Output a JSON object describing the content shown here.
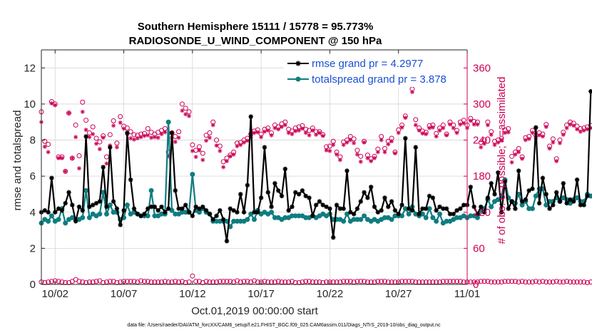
{
  "chart_data": {
    "type": "line",
    "title_line1": "Southern Hemisphere 15111 / 15778 = 95.773%",
    "title_line2": "RADIOSONDE_U_WIND_COMPONENT @ 150 hPa",
    "xlabel": "Oct.01,2019 00:00:00 start",
    "ylabel": "rmse and totalspread",
    "ylabel_right": "# of obs: o=possible; ×=assimilated",
    "footnote": "data file: /Users/raeder/DAI/ATM_forcXX/CAM6_setup/f.e21.FHIST_BGC.f09_025.CAM6assim.011/Diags_NTrS_2019-10/obs_diag_output.nc",
    "xlim": [
      0.5,
      31.5
    ],
    "ylim": [
      0,
      13
    ],
    "ylim_right": [
      0,
      390
    ],
    "x_ticks": [
      1.5,
      6.5,
      11.5,
      16.5,
      21.5,
      26.5,
      31.5
    ],
    "x_tick_labels": [
      "10/02",
      "10/07",
      "10/12",
      "10/17",
      "10/22",
      "10/27",
      "11/01"
    ],
    "y_ticks": [
      0,
      2,
      4,
      6,
      8,
      10,
      12
    ],
    "y_tick_labels": [
      "0",
      "2",
      "4",
      "6",
      "8",
      "10",
      "12"
    ],
    "y_right_ticks": [
      0,
      60,
      120,
      180,
      240,
      300,
      360
    ],
    "y_right_tick_labels": [
      "0",
      "60",
      "120",
      "180",
      "240",
      "300",
      "360"
    ],
    "x_start": 0.5,
    "x_step": 0.25,
    "legend_location": "top-right",
    "series": [
      {
        "name": "rmse grand pr = 4.2977",
        "color": "#000000",
        "marker": "asterisk",
        "values": [
          4.0,
          4.1,
          4.0,
          5.9,
          4.0,
          4.2,
          4.1,
          4.5,
          5.1,
          4.4,
          3.5,
          4.3,
          4.1,
          8.2,
          4.3,
          4.4,
          4.5,
          4.6,
          6.5,
          4.3,
          7.6,
          4.6,
          4.2,
          3.3,
          4.1,
          8.4,
          5.8,
          4.2,
          3.9,
          3.8,
          3.9,
          4.2,
          4.3,
          4.3,
          4.1,
          4.3,
          4.0,
          4.2,
          8.4,
          5.2,
          4.2,
          4.2,
          4.4,
          4.0,
          3.8,
          4.3,
          4.2,
          4.3,
          4.1,
          3.9,
          3.6,
          3.8,
          4.1,
          3.6,
          2.4,
          4.2,
          4.1,
          4.0,
          5.0,
          4.0,
          5.5,
          9.3,
          4.0,
          4.0,
          4.8,
          7.6,
          5.1,
          4.3,
          5.6,
          5.2,
          4.9,
          6.4,
          4.1,
          4.3,
          5.1,
          5.0,
          5.2,
          4.9,
          4.8,
          3.8,
          4.4,
          4.6,
          4.4,
          4.3,
          4.2,
          2.6,
          4.4,
          4.2,
          4.2,
          6.3,
          4.0,
          3.9,
          4.2,
          4.6,
          5.1,
          4.8,
          5.4,
          4.3,
          4.0,
          4.1,
          4.8,
          4.3,
          4.6,
          4.1,
          3.9,
          4.4,
          8.1,
          4.2,
          4.1,
          7.6,
          3.9,
          4.2,
          4.2,
          4.9,
          4.8,
          4.1,
          4.3,
          4.2,
          4.2,
          3.9,
          3.9,
          4.1,
          4.2,
          4.4,
          4.4,
          5.4,
          4.3,
          3.9,
          4.3,
          4.0,
          4.8,
          5.6,
          5.0,
          6.2,
          4.0,
          5.7,
          4.2,
          4.6,
          4.2,
          6.3,
          4.6,
          4.7,
          5.2,
          5.3,
          8.7,
          4.5,
          5.9,
          5.0,
          4.2,
          4.4,
          5.1,
          4.6,
          5.6,
          4.5,
          4.7,
          4.6,
          5.8,
          4.4,
          4.4,
          4.9,
          10.7
        ]
      },
      {
        "name": "totalspread grand pr = 3.878",
        "color": "#0f7d80",
        "marker": "circle",
        "values": [
          3.4,
          3.6,
          3.5,
          3.8,
          3.5,
          3.6,
          4.2,
          3.4,
          3.6,
          3.7,
          3.6,
          3.6,
          3.7,
          5.2,
          3.7,
          3.9,
          3.8,
          3.9,
          5.1,
          3.9,
          4.4,
          4.0,
          4.0,
          3.6,
          3.7,
          4.4,
          3.9,
          4.0,
          3.9,
          3.8,
          3.8,
          3.8,
          5.2,
          3.8,
          3.8,
          3.9,
          3.9,
          9.0,
          4.1,
          3.9,
          3.9,
          4.0,
          4.0,
          4.0,
          6.1,
          4.1,
          4.0,
          4.2,
          4.0,
          3.9,
          3.5,
          3.5,
          3.5,
          3.5,
          3.5,
          3.2,
          3.5,
          3.5,
          3.5,
          3.5,
          3.6,
          3.9,
          3.6,
          4.1,
          3.9,
          4.0,
          3.9,
          4.0,
          3.7,
          3.7,
          3.6,
          3.7,
          3.7,
          3.8,
          3.8,
          3.8,
          3.8,
          3.7,
          3.7,
          3.8,
          3.7,
          3.8,
          3.9,
          3.8,
          3.9,
          3.6,
          3.6,
          3.6,
          3.5,
          3.9,
          3.5,
          3.6,
          3.6,
          3.6,
          3.8,
          3.6,
          3.5,
          3.6,
          3.5,
          3.6,
          3.7,
          3.7,
          3.6,
          3.8,
          3.8,
          3.8,
          4.2,
          3.9,
          4.3,
          3.9,
          3.8,
          3.9,
          3.7,
          4.2,
          3.7,
          3.5,
          3.9,
          3.4,
          3.5,
          3.5,
          3.6,
          3.7,
          3.7,
          3.8,
          3.7,
          3.8,
          3.8,
          3.7,
          4.1,
          4.2,
          4.7,
          4.3,
          4.6,
          4.7,
          4.9,
          5.8,
          4.8,
          4.6,
          4.5,
          5.0,
          4.4,
          4.6,
          4.2,
          4.2,
          4.9,
          5.3,
          5.3,
          4.4,
          4.6,
          4.6,
          4.8,
          4.6,
          4.8,
          4.7,
          4.5,
          4.7,
          4.8,
          4.6,
          4.6,
          5.0,
          4.9
        ]
      },
      {
        "name": "# of obs possible",
        "color": "#cc0055",
        "marker": "open-circle",
        "axis": "right",
        "values": [
          287,
          238,
          233,
          304,
          300,
          212,
          212,
          188,
          285,
          210,
          265,
          214,
          303,
          273,
          252,
          262,
          243,
          237,
          247,
          212,
          249,
          272,
          235,
          279,
          263,
          260,
          254,
          249,
          248,
          250,
          251,
          259,
          253,
          250,
          253,
          256,
          259,
          220,
          252,
          246,
          254,
          300,
          293,
          287,
          232,
          223,
          229,
          218,
          248,
          252,
          270,
          240,
          230,
          204,
          210,
          215,
          220,
          235,
          236,
          240,
          243,
          250,
          255,
          257,
          250,
          258,
          260,
          252,
          265,
          262,
          267,
          270,
          258,
          255,
          260,
          262,
          264,
          258,
          256,
          260,
          254,
          254,
          249,
          229,
          230,
          238,
          220,
          212,
          237,
          240,
          246,
          242,
          223,
          213,
          238,
          215,
          209,
          213,
          225,
          246,
          226,
          238,
          243,
          220,
          257,
          265,
          280,
          344,
          325,
          274,
          260,
          255,
          253,
          264,
          265,
          251,
          260,
          265,
          250,
          270,
          265,
          256,
          270,
          273,
          265,
          276,
          271,
          270,
          236,
          240,
          270,
          254,
          238,
          240,
          243,
          257,
          259,
          213,
          220,
          226,
          212,
          244,
          246,
          256,
          248,
          252,
          250,
          266,
          230,
          242,
          209,
          240,
          253,
          265,
          270,
          268,
          263,
          259,
          260,
          262,
          264
        ]
      },
      {
        "name": "# of obs assimilated",
        "color": "#cc0055",
        "marker": "x",
        "axis": "right",
        "values": [
          270,
          229,
          220,
          301,
          298,
          210,
          210,
          188,
          285,
          210,
          245,
          193,
          287,
          257,
          245,
          250,
          234,
          225,
          244,
          201,
          231,
          264,
          228,
          269,
          259,
          250,
          243,
          241,
          243,
          245,
          247,
          248,
          244,
          245,
          244,
          250,
          253,
          213,
          244,
          237,
          244,
          289,
          283,
          280,
          222,
          212,
          223,
          207,
          239,
          244,
          265,
          231,
          222,
          195,
          205,
          213,
          216,
          230,
          232,
          236,
          239,
          245,
          252,
          253,
          245,
          254,
          256,
          248,
          260,
          258,
          262,
          265,
          252,
          250,
          255,
          256,
          259,
          252,
          248,
          256,
          249,
          252,
          247,
          223,
          222,
          232,
          216,
          207,
          232,
          236,
          240,
          235,
          216,
          204,
          236,
          210,
          205,
          210,
          220,
          240,
          220,
          233,
          238,
          218,
          252,
          261,
          277,
          335,
          320,
          265,
          256,
          251,
          250,
          260,
          261,
          246,
          256,
          260,
          248,
          266,
          260,
          252,
          266,
          268,
          260,
          272,
          266,
          266,
          228,
          234,
          265,
          249,
          232,
          236,
          239,
          252,
          253,
          203,
          216,
          220,
          209,
          240,
          242,
          252,
          243,
          248,
          246,
          262,
          226,
          236,
          205,
          235,
          249,
          260,
          266,
          264,
          258,
          254,
          256,
          258,
          260
        ]
      },
      {
        "name": "# of obs possible (bottom)",
        "color": "#cc0055",
        "marker": "open-circle",
        "axis": "right",
        "values": [
          4,
          3,
          4,
          5,
          6,
          5,
          4,
          3,
          3,
          5,
          8,
          5,
          4,
          3,
          4,
          4,
          5,
          6,
          3,
          4,
          5,
          5,
          3,
          4,
          5,
          5,
          5,
          5,
          4,
          6,
          5,
          5,
          4,
          4,
          4,
          4,
          5,
          4,
          4,
          5,
          4,
          5,
          3,
          4,
          14,
          5,
          5,
          3,
          5,
          4,
          4,
          4,
          5,
          5,
          5,
          5,
          4,
          6,
          4,
          5,
          5,
          4,
          6,
          4,
          4,
          5,
          4,
          4,
          4,
          5,
          4,
          4,
          4,
          5,
          3,
          3,
          4,
          5,
          5,
          4,
          4,
          4,
          3,
          4,
          4,
          4,
          4,
          4,
          5,
          5,
          5,
          4,
          5,
          5,
          5,
          4,
          4,
          4,
          5,
          5,
          5,
          4,
          4,
          4,
          4,
          5,
          5,
          5,
          5,
          4,
          4,
          4,
          4,
          4,
          4,
          4,
          4,
          5,
          5,
          5,
          5,
          5,
          5,
          4,
          4,
          4,
          4,
          4,
          5,
          5,
          5,
          4,
          4,
          4,
          4,
          5,
          5,
          5,
          5,
          4,
          5,
          4,
          4,
          4,
          5,
          4,
          5,
          4,
          4,
          4,
          5,
          4,
          4,
          5,
          4,
          4,
          4,
          4,
          4,
          3,
          4
        ]
      }
    ]
  }
}
